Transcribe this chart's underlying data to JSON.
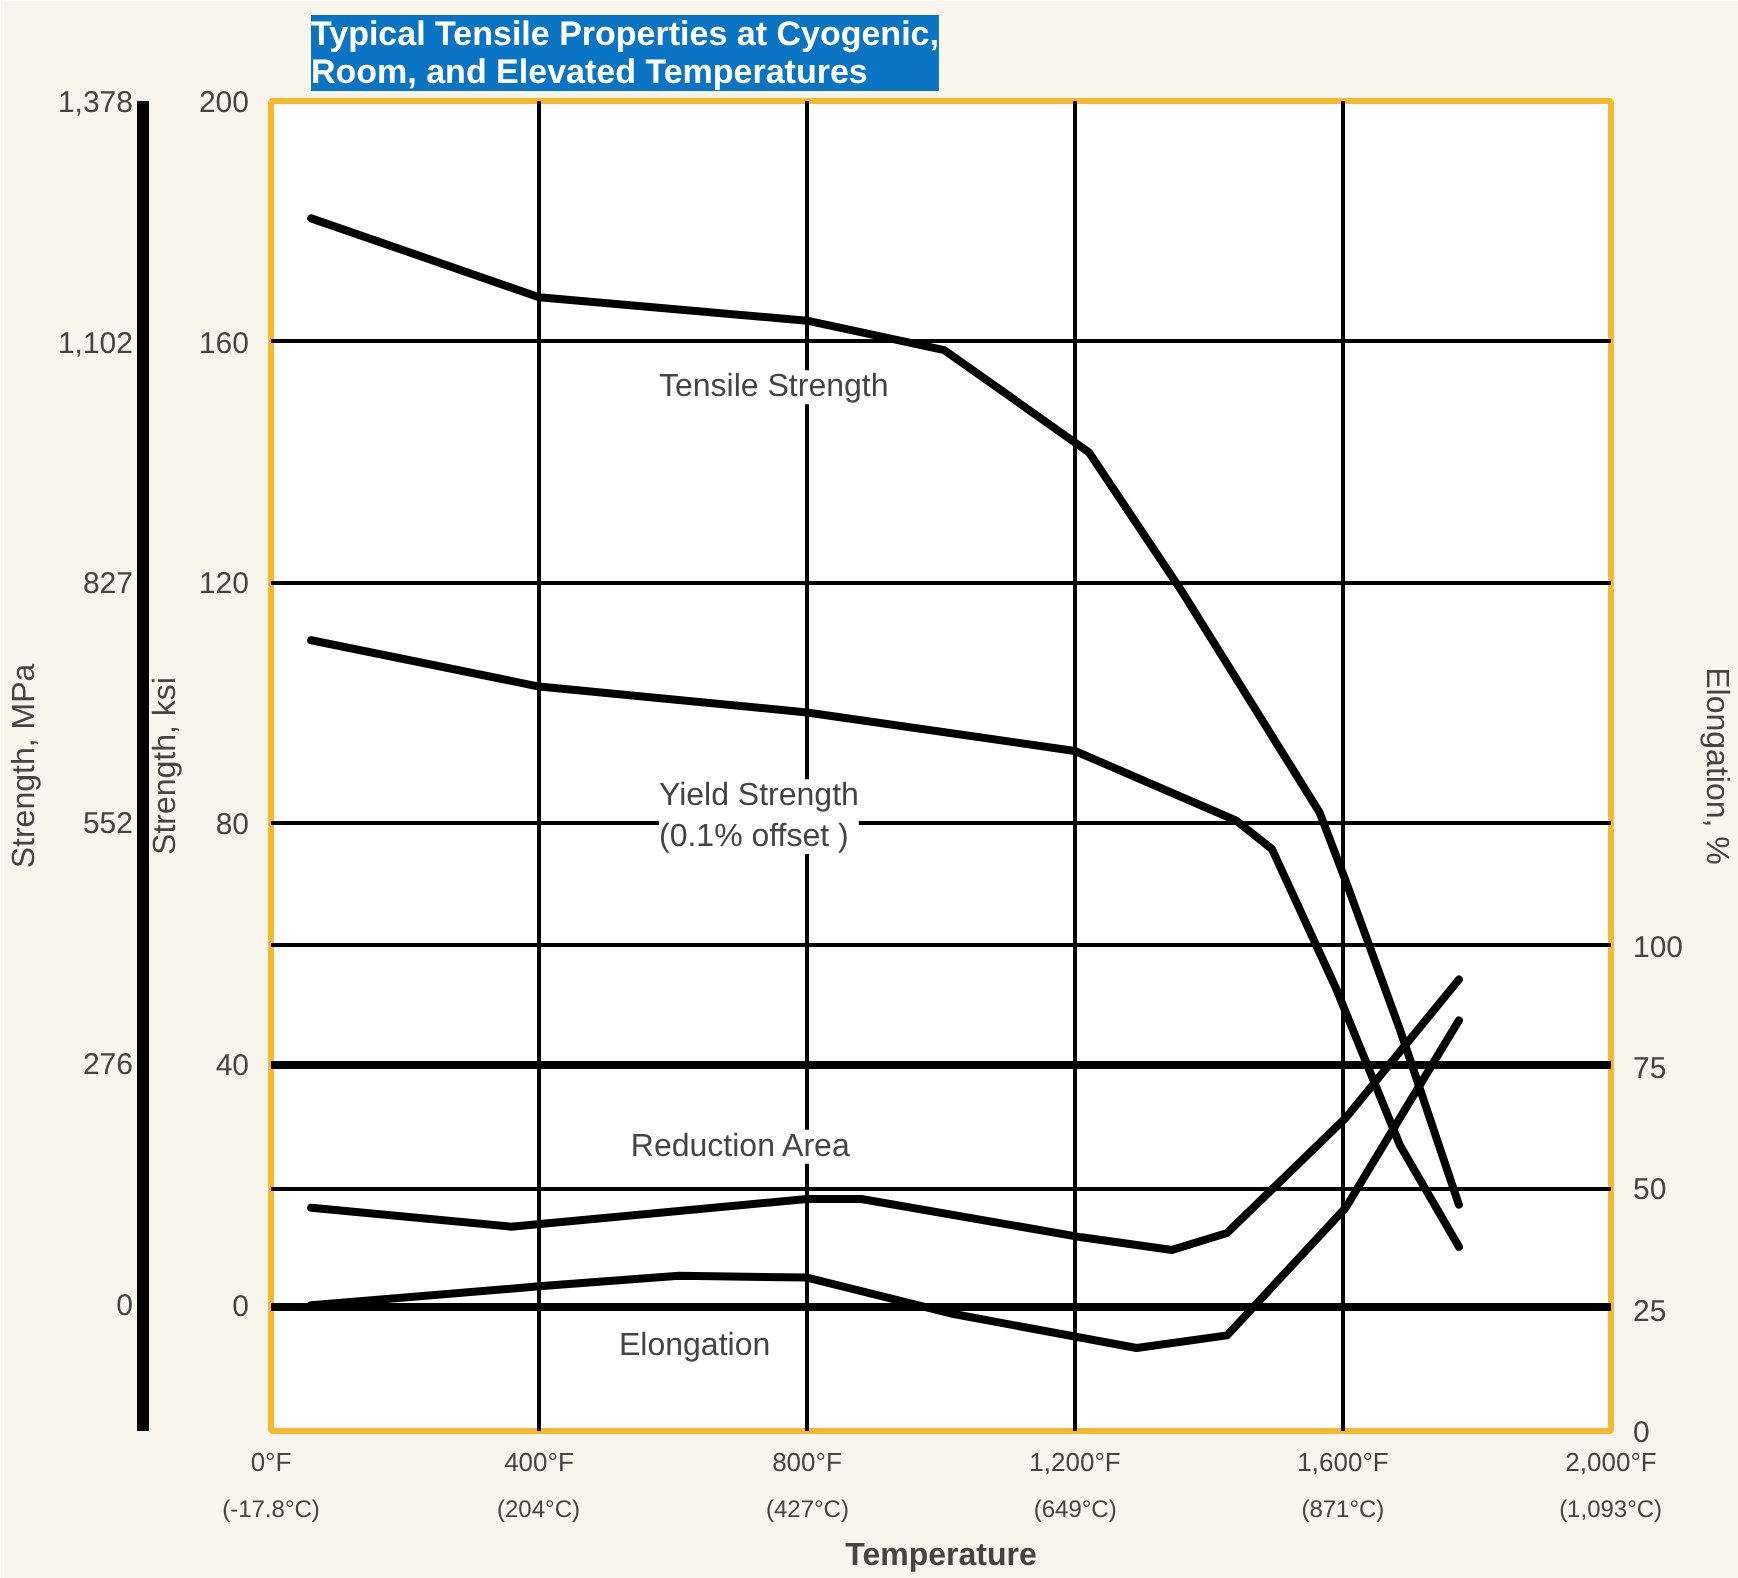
{
  "chart_data": {
    "type": "line",
    "title": "Typical Tensile Properties at Cyogenic,\nRoom, and Elevated Temperatures",
    "xlabel": "Temperature",
    "ylabel": "Strength, ksi",
    "y2label": "Elongation, %",
    "y3label": "Strength, MPa",
    "xlim": [
      0,
      2000
    ],
    "xticks": [
      {
        "value": 0,
        "label": "0°F"
      },
      {
        "value": 400,
        "label": "400°F"
      },
      {
        "value": 800,
        "label": "800°F"
      },
      {
        "value": 1200,
        "label": "1,200°F"
      },
      {
        "value": 1600,
        "label": "1,600°F"
      },
      {
        "value": 2000,
        "label": "2,000°F"
      }
    ],
    "x2lim": [
      -17.8,
      1093.3
    ],
    "x2ticks": [
      {
        "value": -17.8,
        "label": "(-17.8°C)"
      },
      {
        "value": 204,
        "label": "(204°C)"
      },
      {
        "value": 427,
        "label": "(427°C)"
      },
      {
        "value": 649,
        "label": "(649°C)"
      },
      {
        "value": 871,
        "label": "(871°C)"
      },
      {
        "value": 1093,
        "label": "(1,093°C)"
      }
    ],
    "ylim": [
      -21,
      200
    ],
    "yticks": [
      0,
      40,
      80,
      120,
      160,
      200
    ],
    "y2lim": [
      0,
      274
    ],
    "y2ticks": [
      0,
      25,
      50,
      75,
      100
    ],
    "y3lim": [
      -146,
      1378
    ],
    "y3ticks": [
      0,
      276,
      552,
      827,
      {
        "value": 1102,
        "label": "1,102"
      },
      {
        "value": 1378,
        "label": "1,378"
      }
    ],
    "grid": true,
    "marker": "none",
    "line_style": "solid",
    "series": [
      {
        "name": "Tensile Strength",
        "x": [
          60,
          400,
          800,
          1005,
          1221,
          1359,
          1565,
          1604,
          1685,
          1773
        ],
        "values": [
          180.5,
          167.4,
          163.5,
          158.6,
          141.6,
          118.6,
          81.8,
          70.4,
          45.7,
          16.6
        ],
        "color": "#000000"
      },
      {
        "name": "Yield Strength\n(0.1% offset )",
        "x": [
          60,
          400,
          800,
          1200,
          1441,
          1494,
          1589,
          1685,
          1773
        ],
        "values": [
          110.4,
          102.7,
          98.4,
          92,
          80.4,
          75.7,
          52.7,
          26.5,
          9.6
        ],
        "color": "#000000"
      },
      {
        "name": "Reduction Area",
        "x": [
          60,
          358,
          800,
          881,
          1210,
          1345,
          1427,
          1604,
          1773
        ],
        "values": [
          46,
          42.1,
          47.8,
          47.8,
          39.9,
          37.3,
          40.8,
          64.5,
          93
        ],
        "color": "#000000",
        "axis": "y2"
      },
      {
        "name": "Elongation",
        "x": [
          60,
          400,
          609,
          800,
          1019,
          1292,
          1427,
          1604,
          1773
        ],
        "values": [
          25.9,
          29.8,
          32,
          31.6,
          24.1,
          17.1,
          19.7,
          46,
          84.6
        ],
        "color": "#000000",
        "axis": "y2"
      }
    ]
  }
}
